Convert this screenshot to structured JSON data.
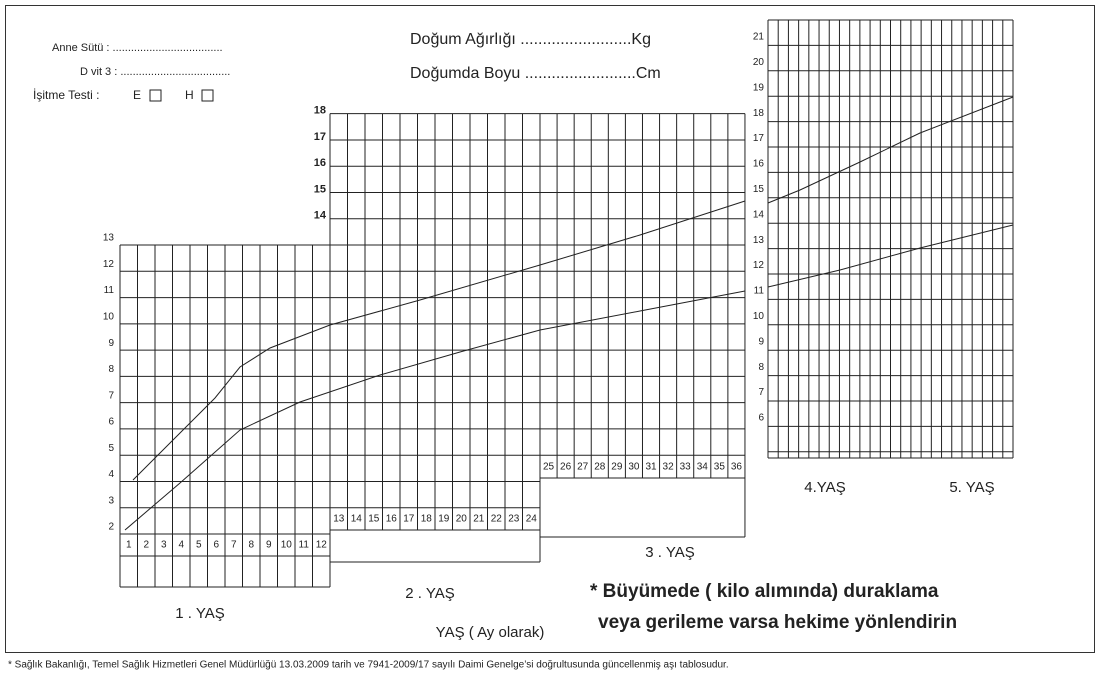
{
  "header": {
    "breast_milk": "Anne Sütü : ....................................",
    "vitamin_d": "D vit 3 : ....................................",
    "hearing_test": "İşitme Testi :",
    "option_e": "E",
    "option_h": "H",
    "birth_weight": "Doğum Ağırlığı .........................Kg",
    "birth_length": "Doğumda Boyu .........................Cm"
  },
  "panel1": {
    "y_labels": [
      2,
      3,
      4,
      5,
      6,
      7,
      8,
      9,
      10,
      11,
      12,
      13
    ],
    "months": [
      1,
      2,
      3,
      4,
      5,
      6,
      7,
      8,
      9,
      10,
      11,
      12
    ],
    "label": "1 .  YAŞ"
  },
  "panel2": {
    "y_labels": [
      14,
      15,
      16,
      17,
      18
    ],
    "months": [
      13,
      14,
      15,
      16,
      17,
      18,
      19,
      20,
      21,
      22,
      23,
      24
    ],
    "label": "2 .  YAŞ"
  },
  "panel3": {
    "months": [
      25,
      26,
      27,
      28,
      29,
      30,
      31,
      32,
      33,
      34,
      35,
      36
    ],
    "label": "3 .  YAŞ"
  },
  "panel4": {
    "y_labels": [
      6,
      7,
      8,
      9,
      10,
      11,
      12,
      13,
      14,
      15,
      16,
      17,
      18,
      19,
      20,
      21
    ],
    "label_4": "4.YAŞ",
    "label_5": "5. YAŞ"
  },
  "axis_label": "YAŞ ( Ay olarak)",
  "note": {
    "line1": "* Büyümede ( kilo alımında) duraklama",
    "line2": "veya gerileme varsa hekime yönlendirin"
  },
  "footer": "* Sağlık Bakanlığı, Temel Sağlık Hizmetleri Genel Müdürlüğü 13.03.2009 tarih ve 7941-2009/17 sayılı Daimi Genelge’si doğrultusunda güncellenmiş aşı tablosudur."
}
